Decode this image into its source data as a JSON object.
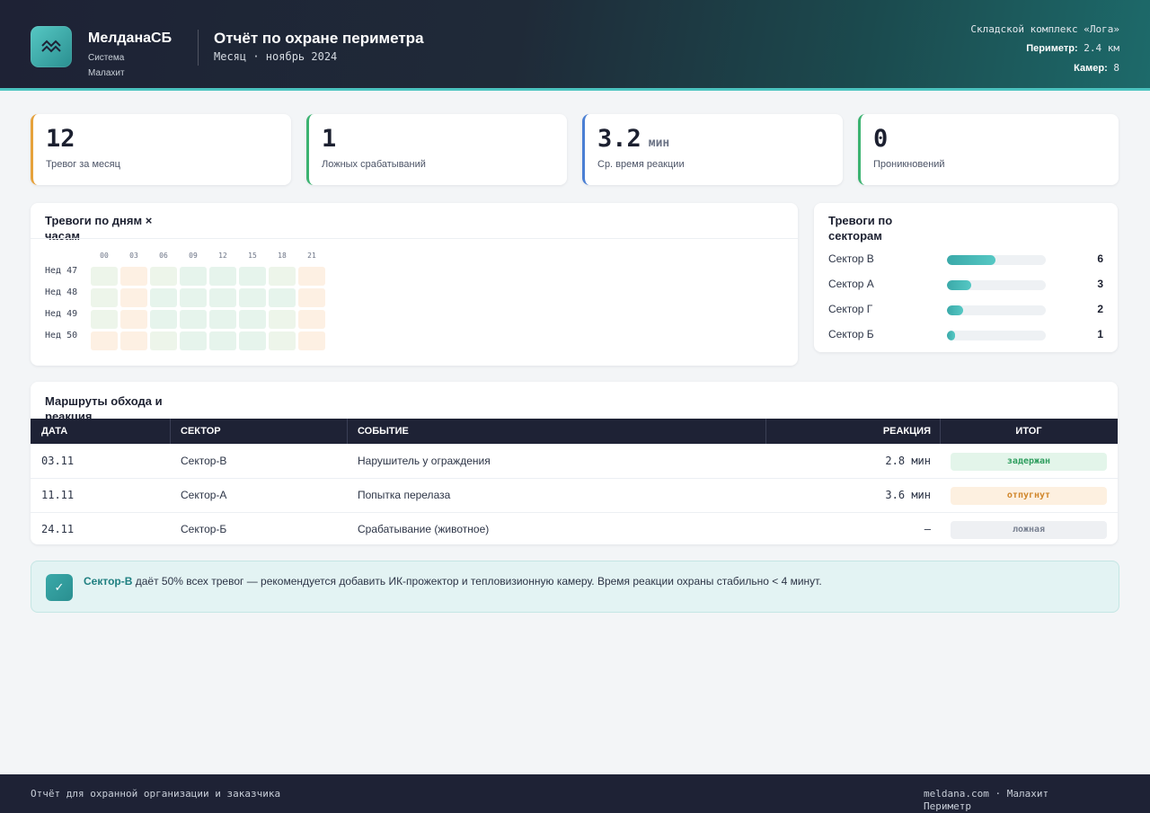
{
  "header": {
    "brand_name": "МелданаСБ",
    "brand_sub": "Система Малахит",
    "report_title": "Отчёт по охране периметра",
    "report_period": "Месяц · ноябрь 2024",
    "site_name": "Складской комплекс «Лога»",
    "perimeter_label": "Периметр:",
    "perimeter_value": "2.4 км",
    "cameras_label": "Камер:",
    "cameras_value": "8",
    "logo_icon": "waves-icon"
  },
  "kpis": [
    {
      "value": "12",
      "unit": "",
      "label": "Тревог за месяц",
      "color": "#e6a23c"
    },
    {
      "value": "1",
      "unit": "",
      "label": "Ложных срабатываний",
      "color": "#3cb371"
    },
    {
      "value": "3.2",
      "unit": "мин",
      "label": "Ср. время реакции",
      "color": "#4a7fd4"
    },
    {
      "value": "0",
      "unit": "",
      "label": "Проникновений",
      "color": "#3cb371"
    }
  ],
  "heatmap": {
    "title": "Тревоги по дням × часам",
    "columns": [
      "00",
      "03",
      "06",
      "09",
      "12",
      "15",
      "18",
      "21"
    ],
    "rows": [
      {
        "label": "Нед 47",
        "levels": [
          "low",
          "med",
          "low",
          "cool",
          "cool",
          "cool",
          "low",
          "med"
        ]
      },
      {
        "label": "Нед 48",
        "levels": [
          "low",
          "med",
          "cool",
          "cool",
          "cool",
          "cool",
          "cool",
          "med"
        ]
      },
      {
        "label": "Нед 49",
        "levels": [
          "low",
          "med",
          "cool",
          "cool",
          "cool",
          "cool",
          "low",
          "med"
        ]
      },
      {
        "label": "Нед 50",
        "levels": [
          "med",
          "med",
          "low",
          "cool",
          "cool",
          "cool",
          "low",
          "med"
        ]
      }
    ],
    "colors": {
      "cool": "#e6f4ec",
      "low": "#edf5ea",
      "med": "#fdf0e3"
    }
  },
  "sectors": {
    "title": "Тревоги по секторам",
    "max": 6,
    "items": [
      {
        "name": "Сектор В",
        "value": 6
      },
      {
        "name": "Сектор А",
        "value": 3
      },
      {
        "name": "Сектор Г",
        "value": 2
      },
      {
        "name": "Сектор Б",
        "value": 1
      }
    ]
  },
  "routes": {
    "title": "Маршруты обхода и реакция",
    "columns": {
      "date": "ДАТА",
      "sector": "СЕКТОР",
      "event": "СОБЫТИЕ",
      "reaction": "РЕАКЦИЯ",
      "result": "ИТОГ"
    },
    "rows": [
      {
        "date": "03.11",
        "sector": "Сектор-В",
        "event": "Нарушитель у ограждения",
        "reaction": "2.8 мин",
        "result": "задержан",
        "result_bg": "#e3f5ea",
        "result_fg": "#2f9e5f"
      },
      {
        "date": "11.11",
        "sector": "Сектор-А",
        "event": "Попытка перелаза",
        "reaction": "3.6 мин",
        "result": "отпугнут",
        "result_bg": "#fdf0e0",
        "result_fg": "#d0862a"
      },
      {
        "date": "24.11",
        "sector": "Сектор-Б",
        "event": "Срабатывание (животное)",
        "reaction": "—",
        "result": "ложная",
        "result_bg": "#eef0f3",
        "result_fg": "#7a8292"
      }
    ]
  },
  "note": {
    "icon": "check-icon",
    "bold": "Сектор-В",
    "text": " даёт 50% всех тревог — рекомендуется добавить ИК-прожектор и тепловизионную камеру. Время реакции охраны стабильно < 4 минут."
  },
  "footer": {
    "left": "Отчёт для охранной организации и заказчика",
    "right": "meldana.com · Малахит Периметр"
  }
}
